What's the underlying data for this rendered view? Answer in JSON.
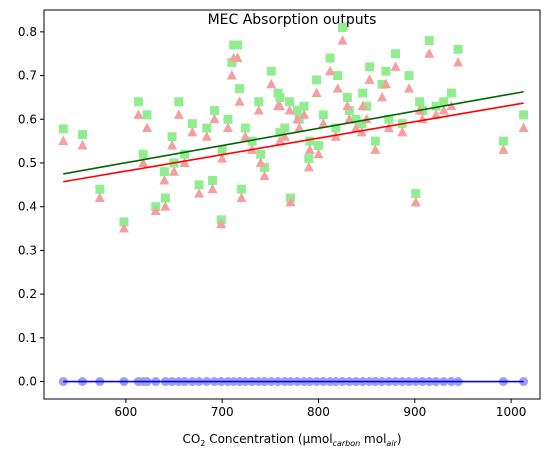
{
  "chart_data": {
    "type": "scatter",
    "title": "MEC Absorption outputs",
    "xlabel": {
      "prefix": "CO",
      "sub1": "2",
      "mid": " Concentration (µmol",
      "sub2": "carbon",
      "mid2": " mol",
      "sub3": "air",
      "suffix": ")"
    },
    "ylabel": "",
    "xlim": [
      515,
      1030
    ],
    "ylim": [
      -0.04,
      0.85
    ],
    "xticks": [
      600,
      700,
      800,
      900,
      1000
    ],
    "yticks": [
      0.0,
      0.1,
      0.2,
      0.3,
      0.4,
      0.5,
      0.6,
      0.7,
      0.8
    ],
    "ytick_labels": [
      "0.0",
      "0.1",
      "0.2",
      "0.3",
      "0.4",
      "0.5",
      "0.6",
      "0.7",
      "0.8"
    ],
    "grid": false,
    "series": [
      {
        "marker": "square",
        "color": "#90ee90",
        "x": [
          535,
          555,
          573,
          598,
          613,
          618,
          622,
          631,
          641,
          648,
          655,
          661,
          669,
          676,
          684,
          692,
          699,
          706,
          712,
          718,
          724,
          731,
          738,
          744,
          751,
          758,
          765,
          771,
          778,
          785,
          791,
          798,
          805,
          812,
          818,
          825,
          832,
          839,
          846,
          853,
          859,
          866,
          873,
          880,
          887,
          894,
          901,
          908,
          915,
          922,
          930,
          938,
          945,
          992,
          1013,
          710,
          716,
          760,
          770,
          820,
          830,
          740,
          780,
          850,
          870,
          690,
          650,
          700,
          760,
          800,
          845,
          640,
          720,
          790,
          905
        ],
        "y": [
          0.578,
          0.565,
          0.44,
          0.365,
          0.64,
          0.52,
          0.61,
          0.4,
          0.42,
          0.56,
          0.64,
          0.52,
          0.59,
          0.45,
          0.58,
          0.62,
          0.37,
          0.6,
          0.77,
          0.67,
          0.58,
          0.55,
          0.64,
          0.49,
          0.71,
          0.66,
          0.58,
          0.42,
          0.62,
          0.63,
          0.55,
          0.69,
          0.61,
          0.74,
          0.58,
          0.81,
          0.62,
          0.6,
          0.66,
          0.72,
          0.55,
          0.68,
          0.6,
          0.75,
          0.59,
          0.7,
          0.43,
          0.62,
          0.78,
          0.63,
          0.64,
          0.66,
          0.76,
          0.55,
          0.61,
          0.73,
          0.77,
          0.65,
          0.64,
          0.7,
          0.65,
          0.52,
          0.6,
          0.63,
          0.71,
          0.46,
          0.5,
          0.53,
          0.57,
          0.54,
          0.59,
          0.48,
          0.44,
          0.51,
          0.64
        ]
      },
      {
        "marker": "triangle",
        "color": "#f4a0a0",
        "x": [
          535,
          555,
          573,
          598,
          613,
          618,
          622,
          631,
          641,
          648,
          655,
          661,
          669,
          676,
          684,
          692,
          699,
          706,
          712,
          718,
          724,
          731,
          738,
          744,
          751,
          758,
          765,
          771,
          778,
          785,
          791,
          798,
          805,
          812,
          818,
          825,
          832,
          839,
          846,
          853,
          859,
          866,
          873,
          880,
          887,
          894,
          901,
          908,
          915,
          922,
          930,
          938,
          945,
          992,
          1013,
          710,
          716,
          760,
          770,
          820,
          830,
          740,
          780,
          850,
          870,
          690,
          650,
          700,
          760,
          800,
          845,
          640,
          720,
          790,
          905
        ],
        "y": [
          0.55,
          0.54,
          0.42,
          0.35,
          0.61,
          0.5,
          0.58,
          0.39,
          0.4,
          0.54,
          0.61,
          0.5,
          0.57,
          0.43,
          0.56,
          0.6,
          0.36,
          0.58,
          0.74,
          0.64,
          0.56,
          0.53,
          0.62,
          0.47,
          0.68,
          0.63,
          0.56,
          0.41,
          0.6,
          0.61,
          0.53,
          0.66,
          0.59,
          0.71,
          0.56,
          0.78,
          0.6,
          0.58,
          0.63,
          0.69,
          0.53,
          0.65,
          0.58,
          0.72,
          0.57,
          0.67,
          0.41,
          0.6,
          0.75,
          0.61,
          0.62,
          0.63,
          0.73,
          0.53,
          0.58,
          0.7,
          0.74,
          0.63,
          0.62,
          0.67,
          0.63,
          0.5,
          0.58,
          0.6,
          0.68,
          0.44,
          0.48,
          0.51,
          0.55,
          0.52,
          0.57,
          0.46,
          0.42,
          0.49,
          0.62
        ]
      },
      {
        "marker": "circle",
        "color": "#9f9ff0",
        "x": [
          535,
          555,
          573,
          598,
          613,
          618,
          622,
          631,
          641,
          648,
          655,
          661,
          669,
          676,
          684,
          692,
          699,
          706,
          712,
          718,
          724,
          731,
          738,
          744,
          751,
          758,
          765,
          771,
          778,
          785,
          791,
          798,
          805,
          812,
          818,
          825,
          832,
          839,
          846,
          853,
          859,
          866,
          873,
          880,
          887,
          894,
          901,
          908,
          915,
          922,
          930,
          938,
          945,
          992,
          1013
        ],
        "y": [
          0,
          0,
          0,
          0,
          0,
          0,
          0,
          0,
          0,
          0,
          0,
          0,
          0,
          0,
          0,
          0,
          0,
          0,
          0,
          0,
          0,
          0,
          0,
          0,
          0,
          0,
          0,
          0,
          0,
          0,
          0,
          0,
          0,
          0,
          0,
          0,
          0,
          0,
          0,
          0,
          0,
          0,
          0,
          0,
          0,
          0,
          0,
          0,
          0,
          0,
          0,
          0,
          0,
          0,
          0
        ]
      }
    ],
    "fit_lines": [
      {
        "color": "#006400",
        "x": [
          535,
          1013
        ],
        "y": [
          0.475,
          0.663
        ]
      },
      {
        "color": "#ff0000",
        "x": [
          535,
          1013
        ],
        "y": [
          0.457,
          0.637
        ]
      },
      {
        "color": "#0000ff",
        "x": [
          535,
          1013
        ],
        "y": [
          0.0,
          0.0
        ]
      }
    ]
  }
}
